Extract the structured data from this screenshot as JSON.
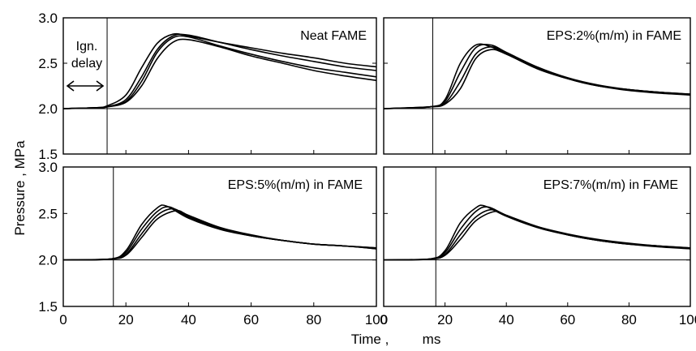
{
  "chart_data": {
    "type": "line",
    "xlabel": "Time ,",
    "xunit": "ms",
    "ylabel": "Pressure , MPa",
    "xlim": [
      0,
      100
    ],
    "ylim": [
      1.5,
      3.0
    ],
    "x_ticks": [
      "0",
      "20",
      "40",
      "60",
      "80",
      "100"
    ],
    "y_ticks": [
      "1.5",
      "2.0",
      "2.5",
      "3.0"
    ],
    "annotation": [
      "Ign.",
      "delay"
    ],
    "panels": [
      {
        "title": "Neat FAME",
        "ignition_time": 14,
        "series": [
          {
            "x": [
              0,
              10,
              14,
              20,
              25,
              30,
              35,
              40,
              50,
              60,
              70,
              80,
              90,
              100
            ],
            "y": [
              2.0,
              2.01,
              2.03,
              2.15,
              2.45,
              2.72,
              2.82,
              2.8,
              2.73,
              2.67,
              2.61,
              2.56,
              2.5,
              2.46
            ]
          },
          {
            "x": [
              0,
              10,
              14,
              20,
              25,
              30,
              35,
              40,
              50,
              60,
              70,
              80,
              90,
              100
            ],
            "y": [
              2.0,
              2.01,
              2.02,
              2.1,
              2.35,
              2.65,
              2.8,
              2.81,
              2.73,
              2.65,
              2.58,
              2.52,
              2.46,
              2.42
            ]
          },
          {
            "x": [
              0,
              10,
              14,
              20,
              25,
              30,
              35,
              40,
              50,
              60,
              70,
              80,
              90,
              100
            ],
            "y": [
              2.0,
              2.01,
              2.02,
              2.08,
              2.3,
              2.62,
              2.78,
              2.79,
              2.69,
              2.6,
              2.52,
              2.45,
              2.4,
              2.35
            ]
          },
          {
            "x": [
              0,
              10,
              14,
              20,
              25,
              30,
              35,
              40,
              50,
              60,
              70,
              80,
              90,
              100
            ],
            "y": [
              2.0,
              2.01,
              2.02,
              2.07,
              2.25,
              2.55,
              2.73,
              2.76,
              2.68,
              2.58,
              2.5,
              2.42,
              2.36,
              2.31
            ]
          }
        ]
      },
      {
        "title": "EPS:2%(m/m) in FAME",
        "ignition_time": 16,
        "series": [
          {
            "x": [
              0,
              15,
              20,
              25,
              30,
              35,
              40,
              50,
              60,
              70,
              80,
              90,
              100
            ],
            "y": [
              2.0,
              2.02,
              2.1,
              2.5,
              2.7,
              2.68,
              2.6,
              2.45,
              2.33,
              2.25,
              2.21,
              2.18,
              2.16
            ]
          },
          {
            "x": [
              0,
              15,
              20,
              25,
              30,
              35,
              40,
              50,
              60,
              70,
              80,
              90,
              100
            ],
            "y": [
              2.0,
              2.02,
              2.08,
              2.4,
              2.67,
              2.7,
              2.62,
              2.46,
              2.34,
              2.26,
              2.21,
              2.18,
              2.16
            ]
          },
          {
            "x": [
              0,
              15,
              20,
              25,
              30,
              35,
              40,
              50,
              60,
              70,
              80,
              90,
              100
            ],
            "y": [
              2.0,
              2.02,
              2.06,
              2.3,
              2.6,
              2.68,
              2.61,
              2.45,
              2.33,
              2.25,
              2.21,
              2.18,
              2.15
            ]
          },
          {
            "x": [
              0,
              15,
              20,
              25,
              30,
              35,
              40,
              50,
              60,
              70,
              80,
              90,
              100
            ],
            "y": [
              2.0,
              2.02,
              2.05,
              2.22,
              2.55,
              2.65,
              2.6,
              2.44,
              2.33,
              2.25,
              2.2,
              2.17,
              2.15
            ]
          }
        ]
      },
      {
        "title": "EPS:5%(m/m) in FAME",
        "ignition_time": 16,
        "series": [
          {
            "x": [
              0,
              15,
              20,
              25,
              30,
              33,
              40,
              50,
              60,
              70,
              80,
              90,
              100
            ],
            "y": [
              2.0,
              2.01,
              2.1,
              2.38,
              2.56,
              2.58,
              2.45,
              2.33,
              2.26,
              2.21,
              2.17,
              2.15,
              2.13
            ]
          },
          {
            "x": [
              0,
              15,
              20,
              25,
              30,
              34,
              40,
              50,
              60,
              70,
              80,
              90,
              100
            ],
            "y": [
              2.0,
              2.01,
              2.08,
              2.33,
              2.52,
              2.57,
              2.46,
              2.34,
              2.26,
              2.21,
              2.17,
              2.15,
              2.13
            ]
          },
          {
            "x": [
              0,
              15,
              20,
              25,
              30,
              35,
              40,
              50,
              60,
              70,
              80,
              90,
              100
            ],
            "y": [
              2.0,
              2.01,
              2.06,
              2.28,
              2.48,
              2.55,
              2.47,
              2.34,
              2.26,
              2.21,
              2.17,
              2.15,
              2.12
            ]
          },
          {
            "x": [
              0,
              15,
              20,
              25,
              30,
              36,
              40,
              50,
              60,
              70,
              80,
              90,
              100
            ],
            "y": [
              2.0,
              2.01,
              2.05,
              2.24,
              2.44,
              2.53,
              2.48,
              2.35,
              2.27,
              2.21,
              2.17,
              2.15,
              2.12
            ]
          }
        ]
      },
      {
        "title": "EPS:7%(m/m) in FAME",
        "ignition_time": 17,
        "series": [
          {
            "x": [
              0,
              15,
              20,
              25,
              30,
              33,
              40,
              50,
              60,
              70,
              80,
              90,
              100
            ],
            "y": [
              2.0,
              2.01,
              2.1,
              2.4,
              2.56,
              2.58,
              2.47,
              2.35,
              2.27,
              2.21,
              2.17,
              2.15,
              2.13
            ]
          },
          {
            "x": [
              0,
              15,
              20,
              25,
              30,
              34,
              40,
              50,
              60,
              70,
              80,
              90,
              100
            ],
            "y": [
              2.0,
              2.01,
              2.08,
              2.33,
              2.52,
              2.57,
              2.48,
              2.36,
              2.28,
              2.22,
              2.18,
              2.15,
              2.13
            ]
          },
          {
            "x": [
              0,
              15,
              20,
              25,
              30,
              35,
              40,
              50,
              60,
              70,
              80,
              90,
              100
            ],
            "y": [
              2.0,
              2.01,
              2.06,
              2.27,
              2.46,
              2.54,
              2.48,
              2.35,
              2.27,
              2.21,
              2.17,
              2.15,
              2.12
            ]
          },
          {
            "x": [
              0,
              15,
              20,
              25,
              30,
              36,
              40,
              50,
              60,
              70,
              80,
              90,
              100
            ],
            "y": [
              2.0,
              2.01,
              2.05,
              2.22,
              2.42,
              2.52,
              2.48,
              2.36,
              2.27,
              2.21,
              2.17,
              2.14,
              2.12
            ]
          }
        ]
      }
    ]
  }
}
